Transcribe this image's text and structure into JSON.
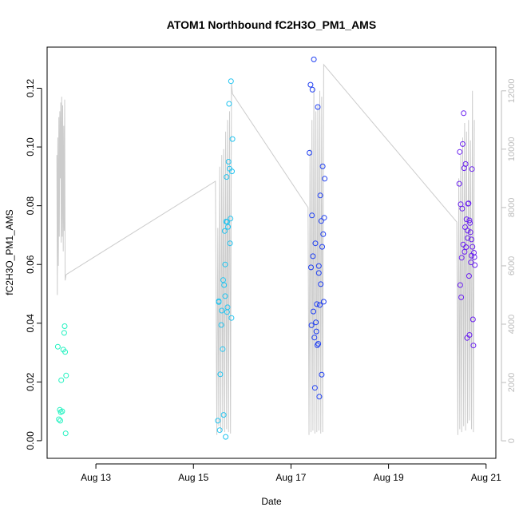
{
  "chart_data": {
    "type": "scatter",
    "title": "ATOM1 Northbound fC2H3O_PM1_AMS",
    "xlabel": "Date",
    "ylabel": "fC2H3O_PM1_AMS",
    "x_range_days": [
      12.0,
      21.2
    ],
    "ylim": [
      -0.006,
      0.134
    ],
    "y_ticks": [
      0.0,
      0.02,
      0.04,
      0.06,
      0.08,
      0.1,
      0.12
    ],
    "y_tick_labels": [
      "0.00",
      "0.02",
      "0.04",
      "0.06",
      "0.08",
      "0.10",
      "0.12"
    ],
    "x_ticks": [
      13,
      15,
      17,
      19,
      21
    ],
    "x_tick_labels": [
      "Aug 13",
      "Aug 15",
      "Aug 17",
      "Aug 19",
      "Aug 21"
    ],
    "y2lim": [
      -600,
      13500
    ],
    "y2_ticks": [
      0,
      2000,
      4000,
      6000,
      8000,
      10000,
      12000
    ],
    "y2_tick_labels": [
      "0",
      "2000",
      "4000",
      "6000",
      "8000",
      "10000",
      "12000"
    ],
    "grid": false,
    "colors": {
      "background_line": "#cccccc",
      "axis": "#000000",
      "axis2": "#bbbbbb",
      "series_colors": [
        "#22f2c0",
        "#22c4f0",
        "#1e3ef2",
        "#6a20f0"
      ]
    },
    "points": [
      [
        12.22,
        0.032,
        0
      ],
      [
        12.24,
        0.0073,
        0
      ],
      [
        12.26,
        0.0105,
        0
      ],
      [
        12.27,
        0.0068,
        0
      ],
      [
        12.28,
        0.0097,
        0
      ],
      [
        12.29,
        0.0206,
        0
      ],
      [
        12.31,
        0.01,
        0
      ],
      [
        12.33,
        0.031,
        0
      ],
      [
        12.35,
        0.0367,
        0
      ],
      [
        12.36,
        0.039,
        0
      ],
      [
        12.37,
        0.0302,
        0
      ],
      [
        12.38,
        0.0025,
        0
      ],
      [
        12.39,
        0.0222,
        0
      ],
      [
        15.5,
        0.0068,
        1
      ],
      [
        15.52,
        0.0475,
        1
      ],
      [
        15.54,
        0.0036,
        1
      ],
      [
        15.55,
        0.0226,
        1
      ],
      [
        15.57,
        0.0394,
        1
      ],
      [
        15.58,
        0.0443,
        1
      ],
      [
        15.6,
        0.0312,
        1
      ],
      [
        15.61,
        0.0547,
        1
      ],
      [
        15.62,
        0.0088,
        1
      ],
      [
        15.63,
        0.053,
        1
      ],
      [
        15.64,
        0.0714,
        1
      ],
      [
        15.65,
        0.06,
        1
      ],
      [
        15.66,
        0.0013,
        1
      ],
      [
        15.67,
        0.0746,
        1
      ],
      [
        15.68,
        0.0898,
        1
      ],
      [
        15.69,
        0.0438,
        1
      ],
      [
        15.7,
        0.0454,
        1
      ],
      [
        15.71,
        0.0728,
        1
      ],
      [
        15.72,
        0.095,
        1
      ],
      [
        15.73,
        0.1147,
        1
      ],
      [
        15.74,
        0.0926,
        1
      ],
      [
        15.75,
        0.0672,
        1
      ],
      [
        15.76,
        0.0756,
        1
      ],
      [
        15.77,
        0.1224,
        1
      ],
      [
        15.78,
        0.0418,
        1
      ],
      [
        15.79,
        0.0917,
        1
      ],
      [
        15.8,
        0.1027,
        1
      ],
      [
        15.65,
        0.0492,
        1
      ],
      [
        15.69,
        0.0745,
        1
      ],
      [
        15.52,
        0.0472,
        1
      ],
      [
        17.38,
        0.098,
        2
      ],
      [
        17.4,
        0.1212,
        2
      ],
      [
        17.41,
        0.059,
        2
      ],
      [
        17.42,
        0.0393,
        2
      ],
      [
        17.43,
        0.0767,
        2
      ],
      [
        17.44,
        0.1195,
        2
      ],
      [
        17.45,
        0.0628,
        2
      ],
      [
        17.46,
        0.044,
        2
      ],
      [
        17.47,
        0.1298,
        2
      ],
      [
        17.48,
        0.0351,
        2
      ],
      [
        17.49,
        0.018,
        2
      ],
      [
        17.5,
        0.0672,
        2
      ],
      [
        17.51,
        0.0403,
        2
      ],
      [
        17.52,
        0.0372,
        2
      ],
      [
        17.53,
        0.0465,
        2
      ],
      [
        17.54,
        0.0325,
        2
      ],
      [
        17.55,
        0.1136,
        2
      ],
      [
        17.56,
        0.033,
        2
      ],
      [
        17.57,
        0.0595,
        2
      ],
      [
        17.58,
        0.015,
        2
      ],
      [
        17.59,
        0.0462,
        2
      ],
      [
        17.6,
        0.0835,
        2
      ],
      [
        17.61,
        0.0533,
        2
      ],
      [
        17.62,
        0.0748,
        2
      ],
      [
        17.63,
        0.0225,
        2
      ],
      [
        17.64,
        0.066,
        2
      ],
      [
        17.65,
        0.0934,
        2
      ],
      [
        17.66,
        0.0703,
        2
      ],
      [
        17.67,
        0.0473,
        2
      ],
      [
        17.68,
        0.0759,
        2
      ],
      [
        17.69,
        0.0892,
        2
      ],
      [
        17.57,
        0.0571,
        2
      ],
      [
        20.45,
        0.0875,
        3
      ],
      [
        20.46,
        0.0983,
        3
      ],
      [
        20.47,
        0.053,
        3
      ],
      [
        20.48,
        0.0805,
        3
      ],
      [
        20.49,
        0.0488,
        3
      ],
      [
        20.5,
        0.0623,
        3
      ],
      [
        20.51,
        0.079,
        3
      ],
      [
        20.52,
        0.101,
        3
      ],
      [
        20.53,
        0.0668,
        3
      ],
      [
        20.54,
        0.1115,
        3
      ],
      [
        20.55,
        0.0928,
        3
      ],
      [
        20.56,
        0.0643,
        3
      ],
      [
        20.57,
        0.0727,
        3
      ],
      [
        20.58,
        0.0942,
        3
      ],
      [
        20.59,
        0.0659,
        3
      ],
      [
        20.6,
        0.0754,
        3
      ],
      [
        20.61,
        0.035,
        3
      ],
      [
        20.62,
        0.069,
        3
      ],
      [
        20.63,
        0.0807,
        3
      ],
      [
        20.64,
        0.0808,
        3
      ],
      [
        20.65,
        0.0561,
        3
      ],
      [
        20.66,
        0.036,
        3
      ],
      [
        20.67,
        0.0741,
        3
      ],
      [
        20.68,
        0.071,
        3
      ],
      [
        20.69,
        0.0607,
        3
      ],
      [
        20.7,
        0.063,
        3
      ],
      [
        20.71,
        0.0925,
        3
      ],
      [
        20.72,
        0.066,
        3
      ],
      [
        20.73,
        0.0413,
        3
      ],
      [
        20.74,
        0.0324,
        3
      ],
      [
        20.75,
        0.064,
        3
      ],
      [
        20.76,
        0.0625,
        3
      ],
      [
        20.77,
        0.0598,
        3
      ],
      [
        20.62,
        0.0715,
        3
      ],
      [
        20.66,
        0.075,
        3
      ],
      [
        20.7,
        0.0685,
        3
      ]
    ],
    "line_series_y2": [
      [
        12.2,
        9800
      ],
      [
        12.21,
        5000
      ],
      [
        12.22,
        10400
      ],
      [
        12.23,
        6000
      ],
      [
        12.24,
        11100
      ],
      [
        12.25,
        7000
      ],
      [
        12.26,
        11300
      ],
      [
        12.27,
        9000
      ],
      [
        12.28,
        11600
      ],
      [
        12.29,
        6800
      ],
      [
        12.3,
        11800
      ],
      [
        12.31,
        7000
      ],
      [
        12.32,
        11500
      ],
      [
        12.33,
        6500
      ],
      [
        12.34,
        10800
      ],
      [
        12.35,
        7200
      ],
      [
        12.36,
        11700
      ],
      [
        12.37,
        5500
      ],
      [
        12.39,
        5700
      ],
      [
        15.45,
        8900
      ],
      [
        15.48,
        200
      ],
      [
        15.5,
        7300
      ],
      [
        15.52,
        500
      ],
      [
        15.54,
        9400
      ],
      [
        15.56,
        300
      ],
      [
        15.58,
        9800
      ],
      [
        15.6,
        400
      ],
      [
        15.62,
        10000
      ],
      [
        15.64,
        300
      ],
      [
        15.66,
        10600
      ],
      [
        15.68,
        400
      ],
      [
        15.7,
        11000
      ],
      [
        15.72,
        300
      ],
      [
        15.74,
        11300
      ],
      [
        15.76,
        250
      ],
      [
        15.78,
        12250
      ],
      [
        15.8,
        11900
      ],
      [
        17.35,
        8000
      ],
      [
        17.37,
        200
      ],
      [
        17.39,
        10000
      ],
      [
        17.41,
        300
      ],
      [
        17.43,
        11000
      ],
      [
        17.45,
        350
      ],
      [
        17.47,
        12100
      ],
      [
        17.49,
        250
      ],
      [
        17.51,
        11300
      ],
      [
        17.53,
        300
      ],
      [
        17.55,
        11500
      ],
      [
        17.57,
        350
      ],
      [
        17.59,
        12000
      ],
      [
        17.61,
        250
      ],
      [
        17.63,
        11800
      ],
      [
        17.65,
        300
      ],
      [
        17.67,
        12900
      ],
      [
        20.4,
        7500
      ],
      [
        20.42,
        200
      ],
      [
        20.44,
        9000
      ],
      [
        20.46,
        400
      ],
      [
        20.48,
        9800
      ],
      [
        20.5,
        300
      ],
      [
        20.52,
        10400
      ],
      [
        20.54,
        500
      ],
      [
        20.56,
        10900
      ],
      [
        20.58,
        350
      ],
      [
        20.6,
        10600
      ],
      [
        20.62,
        600
      ],
      [
        20.64,
        11000
      ],
      [
        20.66,
        700
      ],
      [
        20.68,
        10300
      ],
      [
        20.7,
        400
      ],
      [
        20.72,
        12000
      ],
      [
        20.74,
        300
      ],
      [
        20.76,
        11000
      ]
    ]
  }
}
